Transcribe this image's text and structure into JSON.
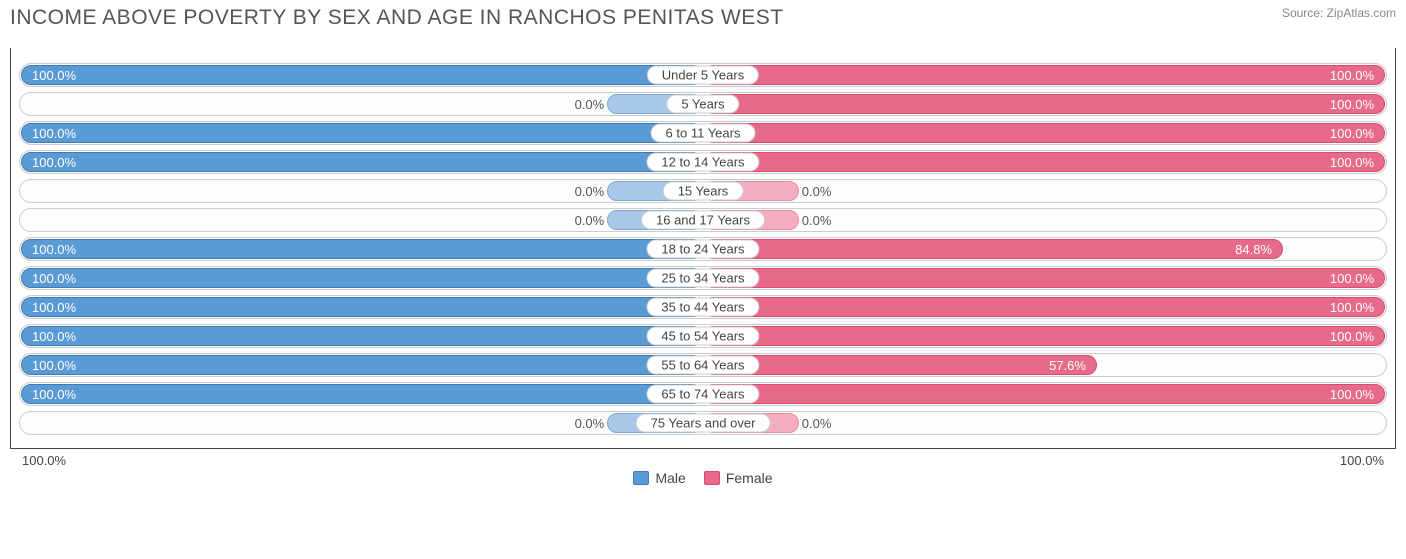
{
  "title": "INCOME ABOVE POVERTY BY SEX AND AGE IN RANCHOS PENITAS WEST",
  "source": "Source: ZipAtlas.com",
  "colors": {
    "male_fill": "#5b9bd5",
    "male_border": "#3e7ab8",
    "male_light_fill": "#a8c8ea",
    "male_light_border": "#7ba8d8",
    "female_fill": "#e86a8a",
    "female_border": "#d84c70",
    "female_light_fill": "#f4aebf",
    "female_light_border": "#ea8ca4",
    "track_border": "#cccccc",
    "text_dark": "#555555",
    "text_white": "#ffffff"
  },
  "axis": {
    "left": "100.0%",
    "right": "100.0%"
  },
  "legend": [
    {
      "label": "Male",
      "fill": "#5b9bd5",
      "border": "#3e7ab8"
    },
    {
      "label": "Female",
      "fill": "#e86a8a",
      "border": "#d84c70"
    }
  ],
  "min_bar_pct": 14,
  "rows": [
    {
      "category": "Under 5 Years",
      "male": 100.0,
      "female": 100.0
    },
    {
      "category": "5 Years",
      "male": 0.0,
      "female": 100.0
    },
    {
      "category": "6 to 11 Years",
      "male": 100.0,
      "female": 100.0
    },
    {
      "category": "12 to 14 Years",
      "male": 100.0,
      "female": 100.0
    },
    {
      "category": "15 Years",
      "male": 0.0,
      "female": 0.0
    },
    {
      "category": "16 and 17 Years",
      "male": 0.0,
      "female": 0.0
    },
    {
      "category": "18 to 24 Years",
      "male": 100.0,
      "female": 84.8
    },
    {
      "category": "25 to 34 Years",
      "male": 100.0,
      "female": 100.0
    },
    {
      "category": "35 to 44 Years",
      "male": 100.0,
      "female": 100.0
    },
    {
      "category": "45 to 54 Years",
      "male": 100.0,
      "female": 100.0
    },
    {
      "category": "55 to 64 Years",
      "male": 100.0,
      "female": 57.6
    },
    {
      "category": "65 to 74 Years",
      "male": 100.0,
      "female": 100.0
    },
    {
      "category": "75 Years and over",
      "male": 0.0,
      "female": 0.0
    }
  ]
}
